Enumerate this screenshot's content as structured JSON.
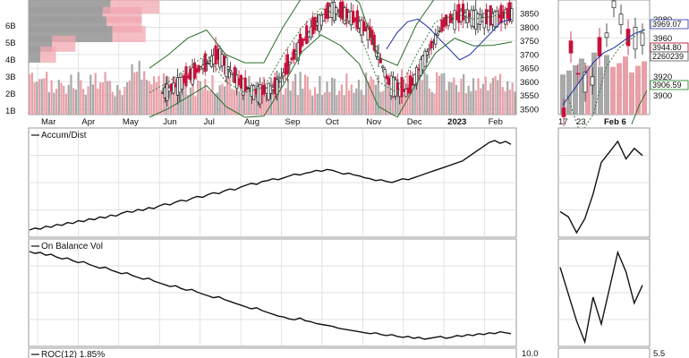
{
  "chart_data": [
    {
      "type": "line",
      "panel": "price-main",
      "description_visible": "price candles with Bollinger bands and volume-by-price bars",
      "x_axis": {
        "tick_labels": [
          "Mar",
          "Apr",
          "May",
          "Jun",
          "Jul",
          "Aug",
          "Sep",
          "Oct",
          "Nov",
          "Dec",
          "2023",
          "Feb"
        ]
      },
      "y_axis_right": {
        "tick_labels": [
          "3850",
          "3800",
          "3750",
          "3700",
          "3650",
          "3600",
          "3550",
          "3500"
        ],
        "ylim": [
          3480,
          3900
        ]
      },
      "y_axis_left_volume": {
        "tick_labels": [
          "6B",
          "5B",
          "4B",
          "3B",
          "2B",
          "1B"
        ]
      },
      "volume_by_price_rows": [
        {
          "price": 3880,
          "up": 0.25,
          "down": 0.42
        },
        {
          "price": 3845,
          "up": 0.2,
          "down": 0.38
        },
        {
          "price": 3810,
          "up": 0.18,
          "down": 0.4
        },
        {
          "price": 3775,
          "up": 0.17,
          "down": 0.43
        },
        {
          "price": 3740,
          "up": 0.12,
          "down": 0.12
        },
        {
          "price": 3700,
          "up": 0.08,
          "down": 0.06
        }
      ],
      "series": [
        {
          "values": [
            3560,
            3600,
            3650,
            3700,
            3600,
            3560,
            3580,
            3700,
            3800,
            3870,
            3840,
            3780,
            3600,
            3560,
            3700,
            3820,
            3850,
            3830,
            3840,
            3860
          ]
        },
        {
          "values": [
            3720,
            3780,
            3820,
            3830,
            3800,
            3760,
            3720,
            3680,
            3700,
            3740,
            3780,
            3820,
            3830
          ]
        }
      ]
    },
    {
      "type": "line",
      "panel": "price-inset",
      "x_axis": {
        "tick_labels": [
          "17",
          "23",
          "Feb 6"
        ]
      },
      "y_axis_right": {
        "tick_labels": [
          "3980",
          "3960",
          "3920",
          "3900"
        ]
      },
      "value_labels": [
        "3969.07",
        "3944.80",
        "2260239",
        "3906.59"
      ],
      "value_label_colors": [
        "#1f2fa3",
        "#b00020",
        "#555555",
        "#1a7a1a"
      ],
      "series": [
        {
          "values": [
            3880,
            3960,
            3920,
            3900,
            3950,
            3975,
            3990,
            3970,
            3960,
            3965
          ]
        },
        {
          "values": [
            3890,
            3905,
            3920,
            3935,
            3945,
            3950,
            3958,
            3965,
            3969
          ]
        },
        {
          "values": [
            3900,
            3860,
            3880,
            3930,
            3950,
            3960,
            3970
          ]
        }
      ]
    },
    {
      "type": "line",
      "panel": "accum-dist",
      "label": "Accum/Dist",
      "series": [
        {
          "values": [
            2,
            4,
            3,
            6,
            5,
            8,
            7,
            10,
            9,
            12,
            11,
            14,
            13,
            16,
            15,
            18,
            17,
            20,
            22,
            21,
            24,
            23,
            26,
            25,
            28,
            30,
            29,
            32,
            34,
            33,
            36,
            38,
            37,
            40,
            42,
            41,
            44,
            46,
            45,
            48,
            50,
            52,
            51,
            54,
            55,
            57,
            56,
            58,
            60,
            62,
            61,
            63,
            64,
            66,
            65,
            67,
            66,
            64,
            62,
            63,
            61,
            60,
            58,
            57,
            55,
            56,
            54,
            53,
            55,
            57,
            56,
            58,
            60,
            62,
            64,
            66,
            68,
            70,
            72,
            74,
            76,
            80,
            84,
            88,
            92,
            96,
            98,
            95,
            97,
            94
          ]
        }
      ],
      "inset_values": [
        38,
        35,
        26,
        34,
        48,
        66,
        72,
        78,
        68,
        74,
        70
      ]
    },
    {
      "type": "line",
      "panel": "on-balance-vol",
      "label": "On Balance Vol",
      "series": [
        {
          "values": [
            96,
            94,
            95,
            92,
            93,
            90,
            88,
            89,
            86,
            84,
            85,
            82,
            80,
            78,
            79,
            76,
            74,
            72,
            73,
            70,
            68,
            66,
            67,
            64,
            62,
            60,
            58,
            59,
            56,
            54,
            55,
            52,
            50,
            48,
            46,
            47,
            44,
            42,
            40,
            38,
            36,
            34,
            35,
            32,
            30,
            28,
            26,
            25,
            23,
            22,
            24,
            21,
            20,
            18,
            17,
            16,
            15,
            13,
            12,
            11,
            10,
            9,
            8,
            7,
            8,
            6,
            5,
            6,
            4,
            3,
            4,
            2,
            3,
            1,
            2,
            3,
            4,
            2,
            3,
            5,
            4,
            6,
            5,
            7,
            6,
            8,
            7,
            9,
            8,
            7
          ]
        }
      ],
      "inset_values": [
        58,
        40,
        22,
        8,
        38,
        20,
        44,
        68,
        55,
        34,
        46
      ]
    },
    {
      "type": "line",
      "panel": "roc",
      "label": "ROC(12) 1.85%",
      "y_axis_right": {
        "tick_labels": [
          "10.0"
        ]
      },
      "inset_y_axis": {
        "tick_labels": [
          "5.5"
        ]
      }
    }
  ],
  "colors": {
    "up_candle": "#c8103a",
    "down_candle": "#222222",
    "bollinger": "#2a6e2a",
    "ma": "#1f2fa3",
    "volume_up": "#e8a0a8",
    "volume_down": "#a8a8a8",
    "vbp_up": "#f2a7b0",
    "vbp_down": "#9e9e9e",
    "grid": "#d8d8d8",
    "line": "#111111"
  }
}
